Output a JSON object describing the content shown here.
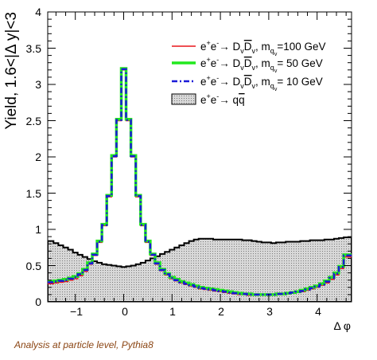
{
  "chart_data": {
    "type": "line",
    "xlabel": "Δ φ",
    "ylabel": "Yield, 1.6<|Δ y|<3",
    "xlim": [
      -1.5708,
      4.7124
    ],
    "ylim": [
      0,
      4.0
    ],
    "x_ticks": [
      "−1",
      "0",
      "1",
      "2",
      "3",
      "4"
    ],
    "y_ticks": [
      "0",
      "0.5",
      "1",
      "1.5",
      "2",
      "2.5",
      "3",
      "3.5",
      "4"
    ],
    "annotation": "Analysis at particle level, Pythia8",
    "legend_position": "top-right",
    "bin_centers": [
      -1.5,
      -1.4,
      -1.3,
      -1.2,
      -1.1,
      -1.0,
      -0.9,
      -0.8,
      -0.7,
      -0.6,
      -0.5,
      -0.4,
      -0.3,
      -0.2,
      -0.1,
      0.0,
      0.1,
      0.2,
      0.3,
      0.4,
      0.5,
      0.6,
      0.7,
      0.8,
      0.9,
      1.0,
      1.1,
      1.2,
      1.3,
      1.4,
      1.5,
      1.6,
      1.7,
      1.8,
      1.9,
      2.0,
      2.1,
      2.2,
      2.3,
      2.4,
      2.5,
      2.6,
      2.7,
      2.8,
      2.9,
      3.0,
      3.1,
      3.2,
      3.3,
      3.4,
      3.5,
      3.6,
      3.7,
      3.8,
      3.9,
      4.0,
      4.1,
      4.2,
      4.3,
      4.4,
      4.5,
      4.6
    ],
    "series": [
      {
        "name": "e⁺e⁻→ D_v D̄_v, m_qv=100 GeV",
        "color": "#e8161b",
        "style": "solid",
        "values": [
          0.25,
          0.26,
          0.27,
          0.28,
          0.3,
          0.32,
          0.36,
          0.42,
          0.52,
          0.64,
          0.82,
          1.05,
          1.45,
          2.0,
          2.5,
          3.2,
          2.5,
          2.0,
          1.45,
          1.05,
          0.82,
          0.64,
          0.52,
          0.43,
          0.37,
          0.32,
          0.29,
          0.26,
          0.24,
          0.22,
          0.2,
          0.18,
          0.17,
          0.16,
          0.15,
          0.14,
          0.13,
          0.12,
          0.11,
          0.1,
          0.1,
          0.09,
          0.09,
          0.09,
          0.09,
          0.09,
          0.09,
          0.1,
          0.1,
          0.11,
          0.12,
          0.13,
          0.14,
          0.16,
          0.18,
          0.2,
          0.23,
          0.26,
          0.31,
          0.37,
          0.46,
          0.62
        ]
      },
      {
        "name": "e⁺e⁻→ D_v D̄_v, m_qv= 50 GeV",
        "color": "#22e81e",
        "style": "solid-thick",
        "values": [
          0.28,
          0.29,
          0.3,
          0.31,
          0.33,
          0.35,
          0.39,
          0.45,
          0.54,
          0.66,
          0.84,
          1.07,
          1.47,
          2.02,
          2.52,
          3.22,
          2.52,
          2.02,
          1.47,
          1.07,
          0.84,
          0.66,
          0.54,
          0.45,
          0.39,
          0.34,
          0.31,
          0.28,
          0.26,
          0.24,
          0.22,
          0.2,
          0.19,
          0.18,
          0.17,
          0.16,
          0.15,
          0.14,
          0.13,
          0.12,
          0.11,
          0.11,
          0.1,
          0.1,
          0.1,
          0.1,
          0.1,
          0.11,
          0.11,
          0.12,
          0.13,
          0.14,
          0.16,
          0.18,
          0.2,
          0.22,
          0.25,
          0.29,
          0.34,
          0.4,
          0.49,
          0.65
        ]
      },
      {
        "name": "e⁺e⁻→ D_v D̄_v, m_qv= 10 GeV",
        "color": "#1a1ad8",
        "style": "dash-dot",
        "values": [
          0.27,
          0.28,
          0.29,
          0.3,
          0.32,
          0.34,
          0.38,
          0.44,
          0.53,
          0.65,
          0.83,
          1.06,
          1.46,
          2.01,
          2.51,
          3.21,
          2.51,
          2.01,
          1.46,
          1.06,
          0.83,
          0.65,
          0.53,
          0.44,
          0.38,
          0.33,
          0.3,
          0.27,
          0.25,
          0.23,
          0.21,
          0.19,
          0.18,
          0.17,
          0.16,
          0.15,
          0.14,
          0.13,
          0.12,
          0.11,
          0.11,
          0.1,
          0.1,
          0.1,
          0.1,
          0.1,
          0.1,
          0.11,
          0.11,
          0.12,
          0.13,
          0.14,
          0.15,
          0.17,
          0.19,
          0.21,
          0.24,
          0.28,
          0.33,
          0.39,
          0.48,
          0.64
        ]
      },
      {
        "name": "e⁺e⁻→ qq̄",
        "color": "#000000",
        "fill": "#cccccc",
        "style": "filled-hatched",
        "values": [
          0.84,
          0.81,
          0.78,
          0.75,
          0.72,
          0.68,
          0.65,
          0.62,
          0.59,
          0.56,
          0.54,
          0.52,
          0.51,
          0.5,
          0.49,
          0.48,
          0.49,
          0.5,
          0.52,
          0.54,
          0.57,
          0.6,
          0.63,
          0.66,
          0.69,
          0.72,
          0.75,
          0.78,
          0.81,
          0.84,
          0.86,
          0.87,
          0.87,
          0.87,
          0.86,
          0.86,
          0.86,
          0.86,
          0.86,
          0.86,
          0.85,
          0.85,
          0.84,
          0.83,
          0.82,
          0.82,
          0.81,
          0.82,
          0.82,
          0.83,
          0.83,
          0.83,
          0.84,
          0.84,
          0.85,
          0.85,
          0.85,
          0.86,
          0.86,
          0.87,
          0.88,
          0.89
        ]
      }
    ]
  },
  "legend": [
    {
      "pre": "e",
      "sup1": "+",
      "mid": "e",
      "sup2": "-",
      "arrow": "→ D",
      "sub1": "v",
      "bar": "D",
      "sub2": "v",
      "post": ", m",
      "sub3": "q",
      "sub3b": "v",
      "value": "=100 GeV"
    },
    {
      "pre": "e",
      "sup1": "+",
      "mid": "e",
      "sup2": "-",
      "arrow": "→ D",
      "sub1": "v",
      "bar": "D",
      "sub2": "v",
      "post": ", m",
      "sub3": "q",
      "sub3b": "v",
      "value": "= 50 GeV"
    },
    {
      "pre": "e",
      "sup1": "+",
      "mid": "e",
      "sup2": "-",
      "arrow": "→ D",
      "sub1": "v",
      "bar": "D",
      "sub2": "v",
      "post": ", m",
      "sub3": "q",
      "sub3b": "v",
      "value": "= 10 GeV"
    },
    {
      "pre": "e",
      "sup1": "+",
      "mid": "e",
      "sup2": "-",
      "arrow": "→ q",
      "bar": "q"
    }
  ]
}
